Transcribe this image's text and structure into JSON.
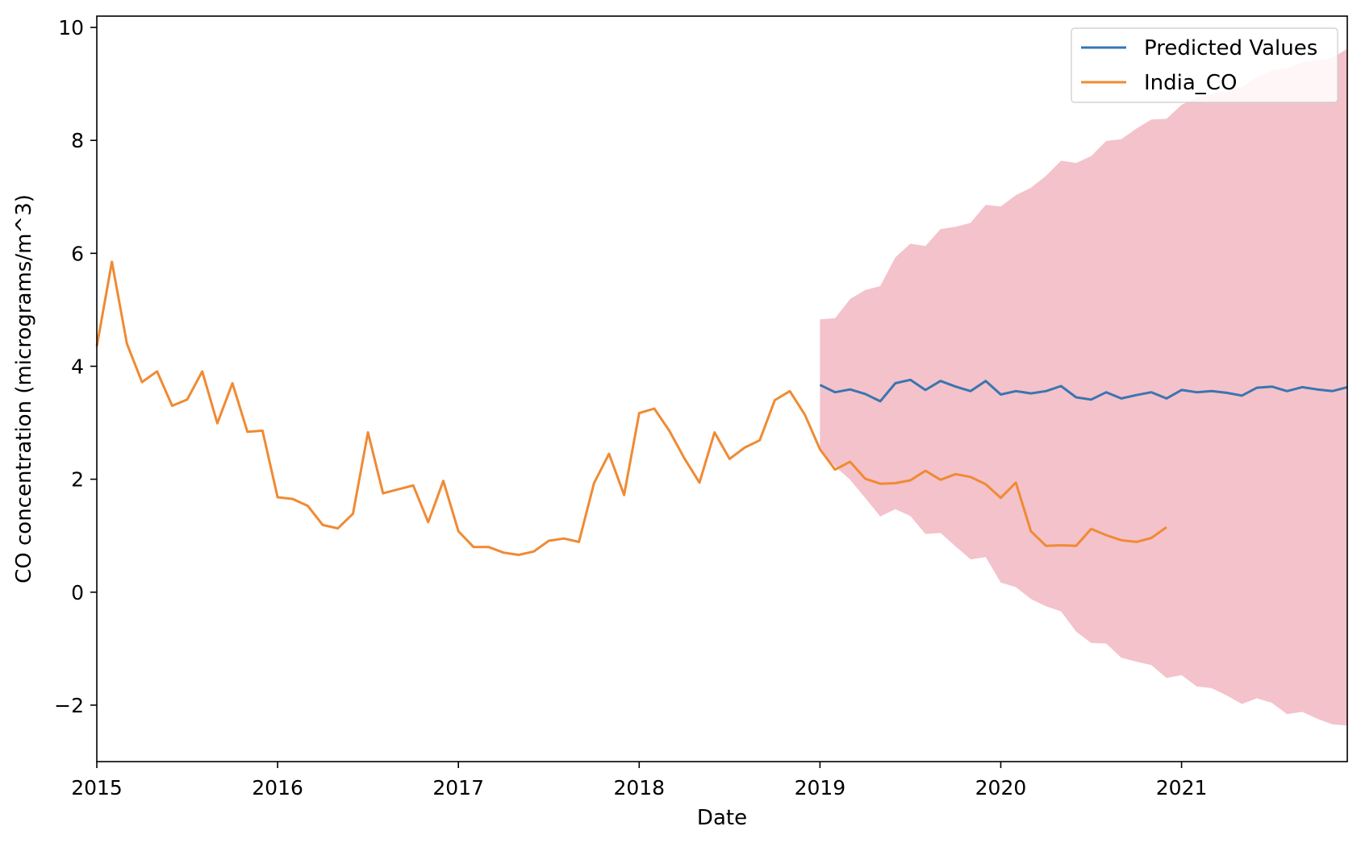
{
  "chart_data": {
    "type": "line",
    "title": "",
    "xlabel": "Date",
    "ylabel": "CO concentration (micrograms/m^3)",
    "xlim": [
      "2015-01",
      "2021-12"
    ],
    "ylim": [
      -3,
      10.2
    ],
    "x_ticks": [
      "2015",
      "2016",
      "2017",
      "2018",
      "2019",
      "2020",
      "2021"
    ],
    "y_ticks": [
      -2,
      0,
      2,
      4,
      6,
      8,
      10
    ],
    "y_tick_labels": [
      "−2",
      "0",
      "2",
      "4",
      "6",
      "8",
      "10"
    ],
    "legend": {
      "placement": "top-right"
    },
    "grid": false,
    "series": [
      {
        "name": "Predicted Values",
        "color": "#3a75b0",
        "x": [
          "2019-01",
          "2019-02",
          "2019-03",
          "2019-04",
          "2019-05",
          "2019-06",
          "2019-07",
          "2019-08",
          "2019-09",
          "2019-10",
          "2019-11",
          "2019-12",
          "2020-01",
          "2020-02",
          "2020-03",
          "2020-04",
          "2020-05",
          "2020-06",
          "2020-07",
          "2020-08",
          "2020-09",
          "2020-10",
          "2020-11",
          "2020-12",
          "2021-01",
          "2021-02",
          "2021-03",
          "2021-04",
          "2021-05",
          "2021-06",
          "2021-07",
          "2021-08",
          "2021-09",
          "2021-10",
          "2021-11",
          "2021-12"
        ],
        "values": [
          3.67,
          3.54,
          3.59,
          3.51,
          3.38,
          3.7,
          3.76,
          3.58,
          3.74,
          3.64,
          3.56,
          3.74,
          3.5,
          3.56,
          3.52,
          3.56,
          3.65,
          3.45,
          3.41,
          3.54,
          3.43,
          3.49,
          3.54,
          3.43,
          3.58,
          3.54,
          3.56,
          3.53,
          3.48,
          3.62,
          3.64,
          3.56,
          3.63,
          3.59,
          3.56,
          3.63
        ]
      },
      {
        "name": "India_CO",
        "color": "#f08a33",
        "x": [
          "2015-01",
          "2015-02",
          "2015-03",
          "2015-04",
          "2015-05",
          "2015-06",
          "2015-07",
          "2015-08",
          "2015-09",
          "2015-10",
          "2015-11",
          "2015-12",
          "2016-01",
          "2016-02",
          "2016-03",
          "2016-04",
          "2016-05",
          "2016-06",
          "2016-07",
          "2016-08",
          "2016-09",
          "2016-10",
          "2016-11",
          "2016-12",
          "2017-01",
          "2017-02",
          "2017-03",
          "2017-04",
          "2017-05",
          "2017-06",
          "2017-07",
          "2017-08",
          "2017-09",
          "2017-10",
          "2017-11",
          "2017-12",
          "2018-01",
          "2018-02",
          "2018-03",
          "2018-04",
          "2018-05",
          "2018-06",
          "2018-07",
          "2018-08",
          "2018-09",
          "2018-10",
          "2018-11",
          "2018-12",
          "2019-01",
          "2019-02",
          "2019-03",
          "2019-04",
          "2019-05",
          "2019-06",
          "2019-07",
          "2019-08",
          "2019-09",
          "2019-10",
          "2019-11",
          "2019-12",
          "2020-01",
          "2020-02",
          "2020-03",
          "2020-04",
          "2020-05",
          "2020-06",
          "2020-07",
          "2020-08",
          "2020-09",
          "2020-10",
          "2020-11",
          "2020-12"
        ],
        "values": [
          4.35,
          5.85,
          4.4,
          3.72,
          3.91,
          3.3,
          3.41,
          3.91,
          2.99,
          3.7,
          2.84,
          2.86,
          1.68,
          1.65,
          1.53,
          1.19,
          1.13,
          1.39,
          2.83,
          1.75,
          1.82,
          1.89,
          1.24,
          1.97,
          1.08,
          0.8,
          0.8,
          0.7,
          0.66,
          0.72,
          0.91,
          0.95,
          0.89,
          1.93,
          2.45,
          1.72,
          3.17,
          3.25,
          2.86,
          2.37,
          1.94,
          2.83,
          2.36,
          2.56,
          2.69,
          3.4,
          3.56,
          3.14,
          2.53,
          2.17,
          2.31,
          2.01,
          1.92,
          1.93,
          1.98,
          2.15,
          1.99,
          2.09,
          2.04,
          1.91,
          1.67,
          1.94,
          1.08,
          0.82,
          0.83,
          0.82,
          1.12,
          1.01,
          0.92,
          0.89,
          0.96,
          1.15
        ]
      }
    ],
    "confidence_band": {
      "color": "#f4c2cb",
      "x": [
        "2019-01",
        "2019-02",
        "2019-03",
        "2019-04",
        "2019-05",
        "2019-06",
        "2019-07",
        "2019-08",
        "2019-09",
        "2019-10",
        "2019-11",
        "2019-12",
        "2020-01",
        "2020-02",
        "2020-03",
        "2020-04",
        "2020-05",
        "2020-06",
        "2020-07",
        "2020-08",
        "2020-09",
        "2020-10",
        "2020-11",
        "2020-12",
        "2021-01",
        "2021-02",
        "2021-03",
        "2021-04",
        "2021-05",
        "2021-06",
        "2021-07",
        "2021-08",
        "2021-09",
        "2021-10",
        "2021-11",
        "2021-12"
      ],
      "upper": [
        4.83,
        4.85,
        5.19,
        5.35,
        5.42,
        5.93,
        6.17,
        6.13,
        6.43,
        6.47,
        6.54,
        6.86,
        6.83,
        7.03,
        7.16,
        7.37,
        7.64,
        7.6,
        7.72,
        7.99,
        8.02,
        8.21,
        8.37,
        8.38,
        8.63,
        8.75,
        8.82,
        8.89,
        8.94,
        9.12,
        9.24,
        9.28,
        9.38,
        9.42,
        9.46,
        9.62
      ],
      "lower": [
        2.51,
        2.23,
        1.99,
        1.67,
        1.34,
        1.47,
        1.35,
        1.03,
        1.05,
        0.81,
        0.58,
        0.62,
        0.17,
        0.09,
        -0.12,
        -0.25,
        -0.34,
        -0.7,
        -0.9,
        -0.91,
        -1.16,
        -1.23,
        -1.29,
        -1.52,
        -1.47,
        -1.67,
        -1.7,
        -1.83,
        -1.98,
        -1.88,
        -1.96,
        -2.16,
        -2.12,
        -2.24,
        -2.34,
        -2.36
      ]
    }
  }
}
